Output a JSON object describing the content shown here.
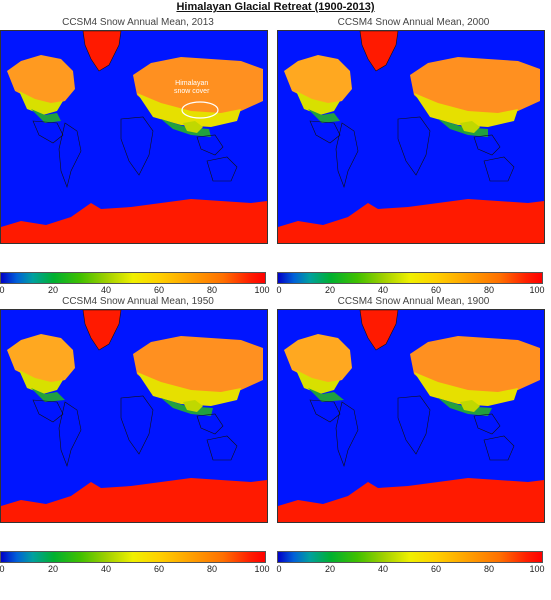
{
  "title": "Himalayan Glacial Retreat (1900-2013)",
  "colorbar": {
    "ticks": [
      "0",
      "20",
      "40",
      "60",
      "80",
      "100"
    ],
    "colors": [
      "#0000c8",
      "#00b030",
      "#f0f000",
      "#ffa000",
      "#ff0000"
    ]
  },
  "panels": [
    {
      "title": "CCSM4 Snow Annual Mean, 2013",
      "annotation": "Himalayan\nsnow cover"
    },
    {
      "title": "CCSM4 Snow Annual Mean, 2000"
    },
    {
      "title": "CCSM4 Snow Annual Mean, 1950"
    },
    {
      "title": "CCSM4 Snow Annual Mean, 1900"
    }
  ],
  "colors": {
    "ocean": "#0015ff",
    "land_outline": "#111111"
  }
}
